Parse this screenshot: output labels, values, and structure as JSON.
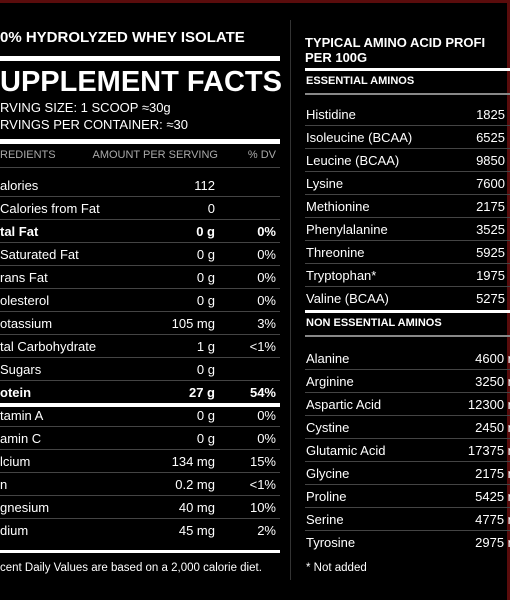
{
  "left": {
    "title": "0% HYDROLYZED WHEY ISOLATE",
    "heading": "UPPLEMENT FACTS",
    "serving_size": "RVING SIZE: 1 SCOOP ≈30g",
    "servings": "RVINGS PER CONTAINER: ≈30",
    "columns": [
      "REDIENTS",
      "AMOUNT PER SERVING",
      "% DV"
    ],
    "rows": [
      {
        "name": "alories",
        "amount": "112"
      },
      {
        "name": "Calories from Fat",
        "amount": "0"
      },
      {
        "name": "tal Fat",
        "amount": "0 g",
        "dv": "0%",
        "bold": true
      },
      {
        "name": "Saturated Fat",
        "amount": "0 g",
        "dv": "0%"
      },
      {
        "name": "rans Fat",
        "amount": "0 g",
        "dv": "0%"
      },
      {
        "name": "olesterol",
        "amount": "0 g",
        "dv": "0%"
      },
      {
        "name": "otassium",
        "amount": "105 mg",
        "dv": "3%"
      },
      {
        "name": "tal Carbohydrate",
        "amount": "1 g",
        "dv": "<1%"
      },
      {
        "name": "Sugars",
        "amount": "0 g"
      },
      {
        "name": "otein",
        "amount": "27 g",
        "dv": "54%",
        "bold": true
      },
      {
        "name": "tamin A",
        "amount": "0 g",
        "dv": "0%"
      },
      {
        "name": "amin C",
        "amount": "0 g",
        "dv": "0%"
      },
      {
        "name": "lcium",
        "amount": "134 mg",
        "dv": "15%"
      },
      {
        "name": "n",
        "amount": "0.2 mg",
        "dv": "<1%"
      },
      {
        "name": "gnesium",
        "amount": "40 mg",
        "dv": "10%"
      },
      {
        "name": "dium",
        "amount": "45 mg",
        "dv": "2%"
      }
    ],
    "footnote": "cent Daily Values are based on a 2,000 calorie diet."
  },
  "right": {
    "title": [
      "TYPICAL AMINO ACID PROFI",
      "PER 100G"
    ],
    "sections": [
      {
        "heading": "ESSENTIAL AMINOS",
        "rows": [
          [
            "Histidine",
            "1825"
          ],
          [
            "Isoleucine (BCAA)",
            "6525"
          ],
          [
            "Leucine (BCAA)",
            "9850"
          ],
          [
            "Lysine",
            "7600"
          ],
          [
            "Methionine",
            "2175"
          ],
          [
            "Phenylalanine",
            "3525"
          ],
          [
            "Threonine",
            "5925"
          ],
          [
            "Tryptophan*",
            "1975"
          ],
          [
            "Valine (BCAA)",
            "5275"
          ]
        ]
      },
      {
        "heading": "NON ESSENTIAL AMINOS",
        "rows": [
          [
            "Alanine",
            "4600 r"
          ],
          [
            "Arginine",
            "3250 r"
          ],
          [
            "Aspartic Acid",
            "12300 r"
          ],
          [
            "Cystine",
            "2450 r"
          ],
          [
            "Glutamic Acid",
            "17375 r"
          ],
          [
            "Glycine",
            "2175 r"
          ],
          [
            "Proline",
            "5425 r"
          ],
          [
            "Serine",
            "4775 r"
          ],
          [
            "Tyrosine",
            "2975 r"
          ]
        ]
      }
    ],
    "footnote": "* Not added"
  }
}
